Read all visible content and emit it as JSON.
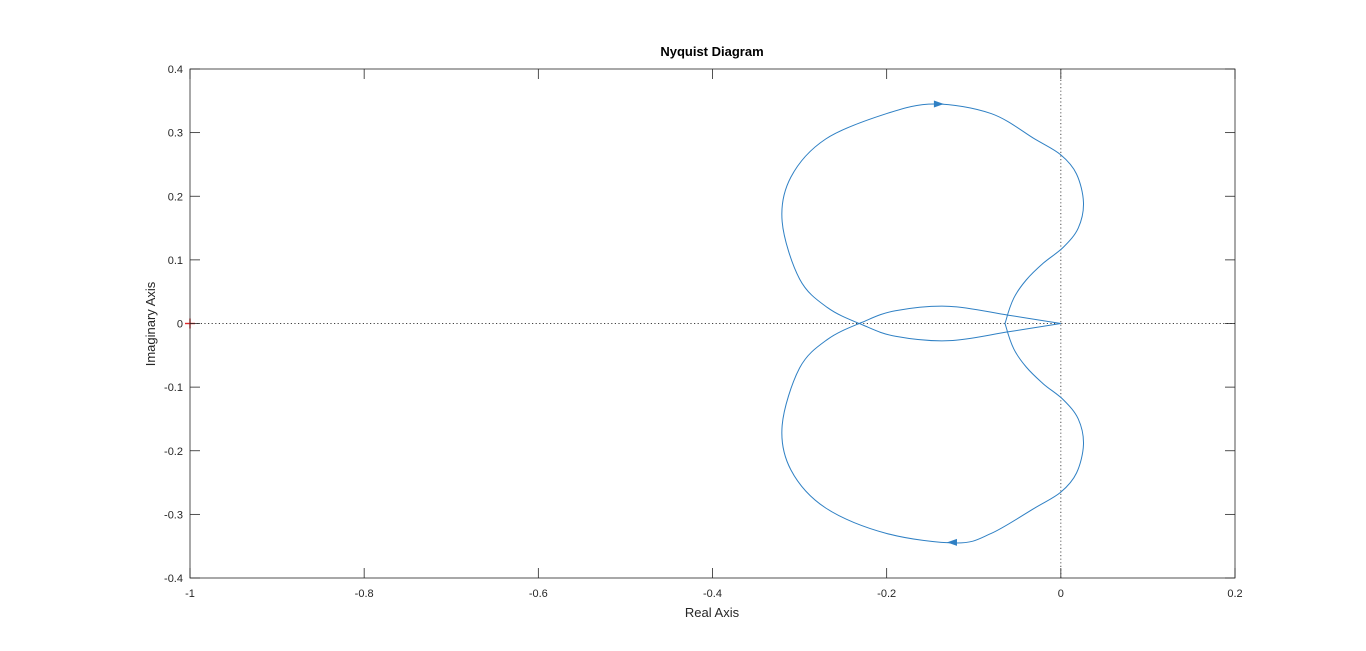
{
  "chart_data": {
    "type": "line",
    "title": "Nyquist Diagram",
    "xlabel": "Real Axis",
    "ylabel": "Imaginary Axis",
    "xlim": [
      -1,
      0.2
    ],
    "ylim": [
      -0.4,
      0.4
    ],
    "xticks": [
      -1,
      -0.8,
      -0.6,
      -0.4,
      -0.2,
      0,
      0.2
    ],
    "xtick_labels": [
      "-1",
      "-0.8",
      "-0.6",
      "-0.4",
      "-0.2",
      "0",
      "0.2"
    ],
    "yticks": [
      -0.4,
      -0.3,
      -0.2,
      -0.1,
      0,
      0.1,
      0.2,
      0.3,
      0.4
    ],
    "ytick_labels": [
      "-0.4",
      "-0.3",
      "-0.2",
      "-0.1",
      "0",
      "0.1",
      "0.2",
      "0.3",
      "0.4"
    ],
    "grid": false,
    "reference_lines": {
      "real_axis_zero": "dotted",
      "imag_axis_zero": "dotted"
    },
    "critical_point": {
      "x": -1,
      "y": 0,
      "marker": "+",
      "color": "#e0292b"
    },
    "series_color": "#2f80c4",
    "series": [
      {
        "x": [
          0,
          -0.06,
          -0.128,
          -0.19,
          -0.228,
          -0.268,
          -0.3,
          -0.32,
          -0.31,
          -0.27,
          -0.2,
          -0.145,
          -0.08,
          -0.03,
          0,
          0.018,
          0.026,
          0.02,
          0.003,
          -0.02,
          -0.04,
          -0.054,
          -0.063,
          -0.063,
          -0.054,
          -0.04,
          -0.02,
          0.003,
          0.02,
          0.026,
          0.018,
          0,
          -0.03,
          -0.08,
          -0.12,
          -0.2,
          -0.27,
          -0.31,
          -0.32,
          -0.3,
          -0.268,
          -0.228,
          -0.19,
          -0.128,
          -0.06,
          0
        ],
        "y": [
          0,
          -0.013,
          -0.027,
          -0.02,
          -0.002,
          0.025,
          0.07,
          0.16,
          0.23,
          0.29,
          0.33,
          0.345,
          0.33,
          0.29,
          0.265,
          0.235,
          0.19,
          0.15,
          0.12,
          0.095,
          0.068,
          0.04,
          0.005,
          -0.005,
          -0.04,
          -0.068,
          -0.095,
          -0.12,
          -0.15,
          -0.19,
          -0.235,
          -0.265,
          -0.29,
          -0.33,
          -0.345,
          -0.33,
          -0.29,
          -0.23,
          -0.16,
          -0.07,
          -0.025,
          0.002,
          0.02,
          0.027,
          0.013,
          0
        ]
      }
    ],
    "direction_arrows": [
      {
        "x": -0.14,
        "y": 0.345,
        "direction": "right"
      },
      {
        "x": -0.125,
        "y": -0.344,
        "direction": "left"
      }
    ]
  }
}
